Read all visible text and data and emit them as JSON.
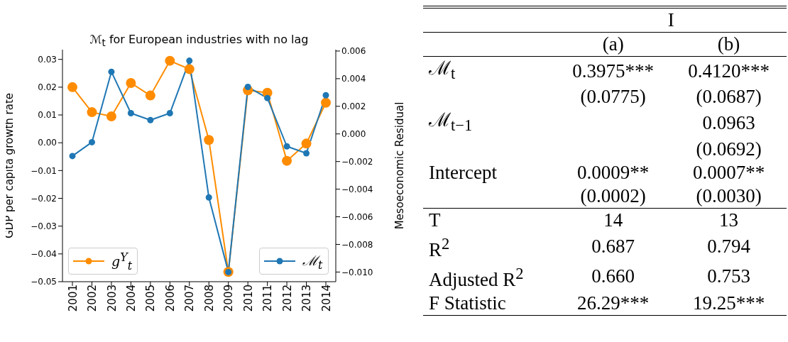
{
  "chart_data": [
    {
      "type": "line",
      "title": "ℳ$_{t}$ for European industries with no lag",
      "ylabel": "GDP per capita growth rate",
      "y2label": "Mesoeconomic Residual",
      "categories": [
        "2001",
        "2002",
        "2003",
        "2004",
        "2005",
        "2006",
        "2007",
        "2008",
        "2009",
        "2010",
        "2011",
        "2012",
        "2013",
        "2014"
      ],
      "series": [
        {
          "name": "g$^{Y}$$_{t}$",
          "color": "#ff8c00",
          "values": [
            0.02,
            0.011,
            0.0095,
            0.0215,
            0.017,
            0.0295,
            0.0265,
            0.001,
            -0.0465,
            0.0189,
            0.018,
            -0.0065,
            -0.0003,
            0.0144
          ]
        },
        {
          "name": "ℳ$_{t}$",
          "color": "#1f77b4",
          "axis": "y2",
          "values": [
            -0.0016,
            -0.0006,
            0.0045,
            0.0015,
            0.001,
            0.0015,
            0.0053,
            -0.0046,
            -0.01,
            0.0034,
            0.0026,
            -0.0009,
            -0.0014,
            0.0028
          ]
        }
      ],
      "ylim": [
        -0.05,
        0.0335
      ],
      "yticks": [
        {
          "value": -0.05,
          "label": "−0.05"
        },
        {
          "value": -0.04,
          "label": "−0.04"
        },
        {
          "value": -0.03,
          "label": "−0.03"
        },
        {
          "value": -0.02,
          "label": "−0.02"
        },
        {
          "value": -0.01,
          "label": "−0.01"
        },
        {
          "value": 0,
          "label": "0.00"
        },
        {
          "value": 0.01,
          "label": "0.01"
        },
        {
          "value": 0.02,
          "label": "0.02"
        },
        {
          "value": 0.03,
          "label": "0.03"
        }
      ],
      "y2lim": [
        -0.0107,
        0.0061
      ],
      "y2ticks": [
        {
          "value": -0.01,
          "label": "−0.010"
        },
        {
          "value": -0.008,
          "label": "−0.008"
        },
        {
          "value": -0.006,
          "label": "−0.006"
        },
        {
          "value": -0.004,
          "label": "−0.004"
        },
        {
          "value": -0.002,
          "label": "−0.002"
        },
        {
          "value": 0,
          "label": "0.000"
        },
        {
          "value": 0.002,
          "label": "0.002"
        },
        {
          "value": 0.004,
          "label": "0.004"
        },
        {
          "value": 0.006,
          "label": "0.006"
        }
      ],
      "grid": false,
      "legend": "bottom",
      "marker": "circle",
      "line_style": "solid"
    },
    {
      "type": "other",
      "title": "I",
      "categories": [
        "(a)",
        "(b)"
      ],
      "y_categories": [
        "ℳ$_{t}$",
        null,
        "ℳ$_{t−1}$",
        null,
        "Intercept",
        null,
        "T",
        "R$^{2}$",
        "Adjusted R$^{2}$",
        "F Statistic"
      ],
      "cell_labels": [
        [
          "0.3975***",
          "0.4120***"
        ],
        [
          "(0.0775)",
          "(0.0687)"
        ],
        [
          null,
          "0.0963"
        ],
        [
          null,
          "(0.0692)"
        ],
        [
          "0.0009**",
          "0.0007**"
        ],
        [
          "(0.0002)",
          "(0.0030)"
        ],
        [
          "14",
          "13"
        ],
        [
          "0.687",
          "0.794"
        ],
        [
          "0.660",
          "0.753"
        ],
        [
          "26.29***",
          "19.25***"
        ]
      ]
    }
  ]
}
